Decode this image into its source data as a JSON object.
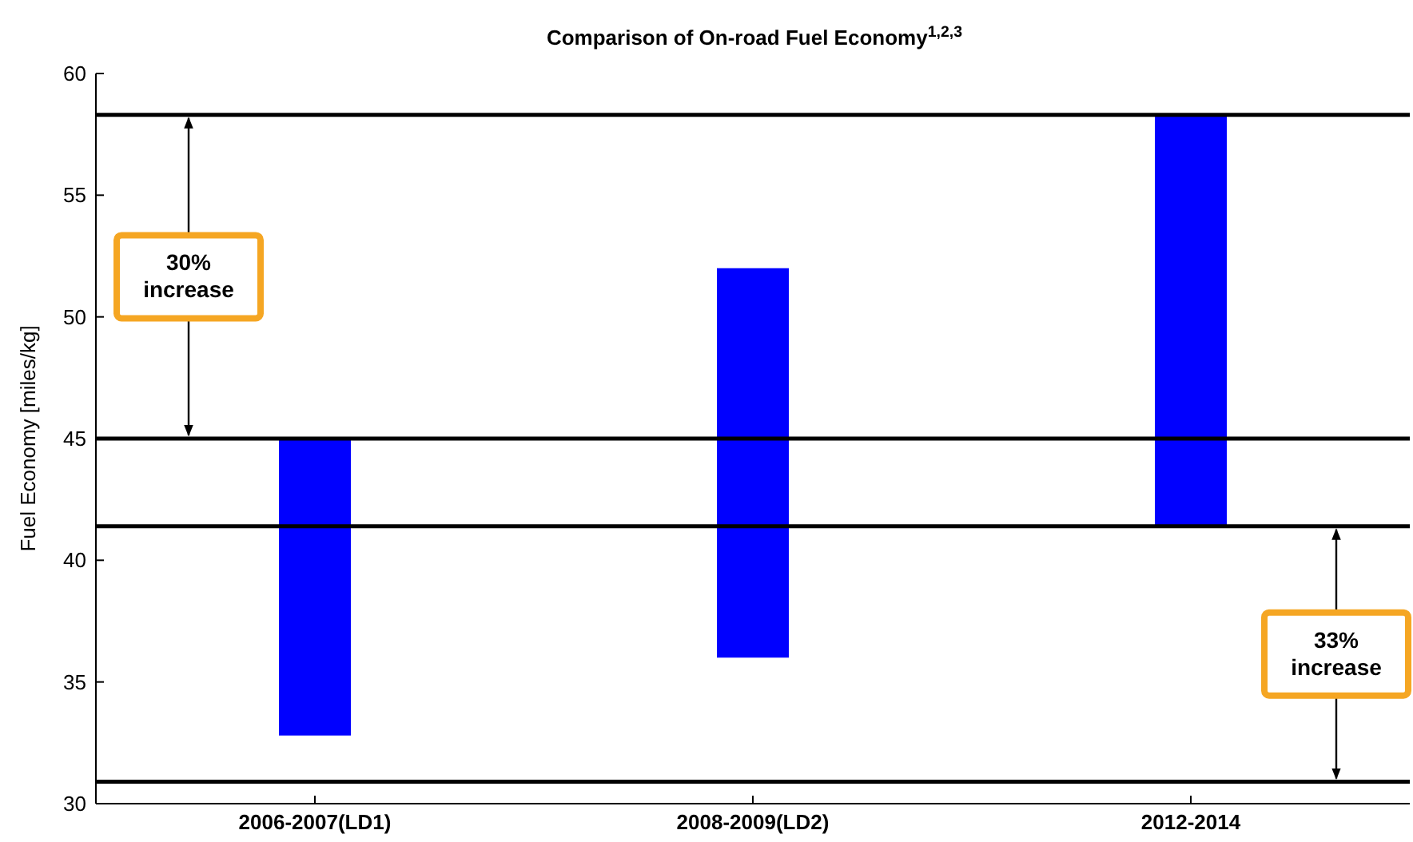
{
  "chart_data": {
    "type": "bar",
    "title": "Comparison of On-road Fuel Economy$^{1,2,3}$",
    "ylabel": "Fuel Economy [miles/kg]",
    "categories": [
      "2006-2007(LD1)",
      "2008-2009(LD2)",
      "2012-2014"
    ],
    "base": [
      32.8,
      36,
      41.4
    ],
    "values": [
      12.2,
      16,
      16.9
    ],
    "color": "#0000ff",
    "ylim": [
      30,
      60
    ],
    "yticks": [
      30,
      35,
      40,
      45,
      50,
      55,
      60
    ],
    "ref_lines": [
      {
        "axis": "y",
        "value": 58.3,
        "color": "#000000"
      },
      {
        "axis": "y",
        "value": 45,
        "color": "#000000"
      },
      {
        "axis": "y",
        "value": 41.4,
        "color": "#000000"
      },
      {
        "axis": "y",
        "value": 30.9,
        "color": "#000000"
      }
    ],
    "annotations": [
      "30% increase",
      "33% increase"
    ],
    "grid": false
  }
}
